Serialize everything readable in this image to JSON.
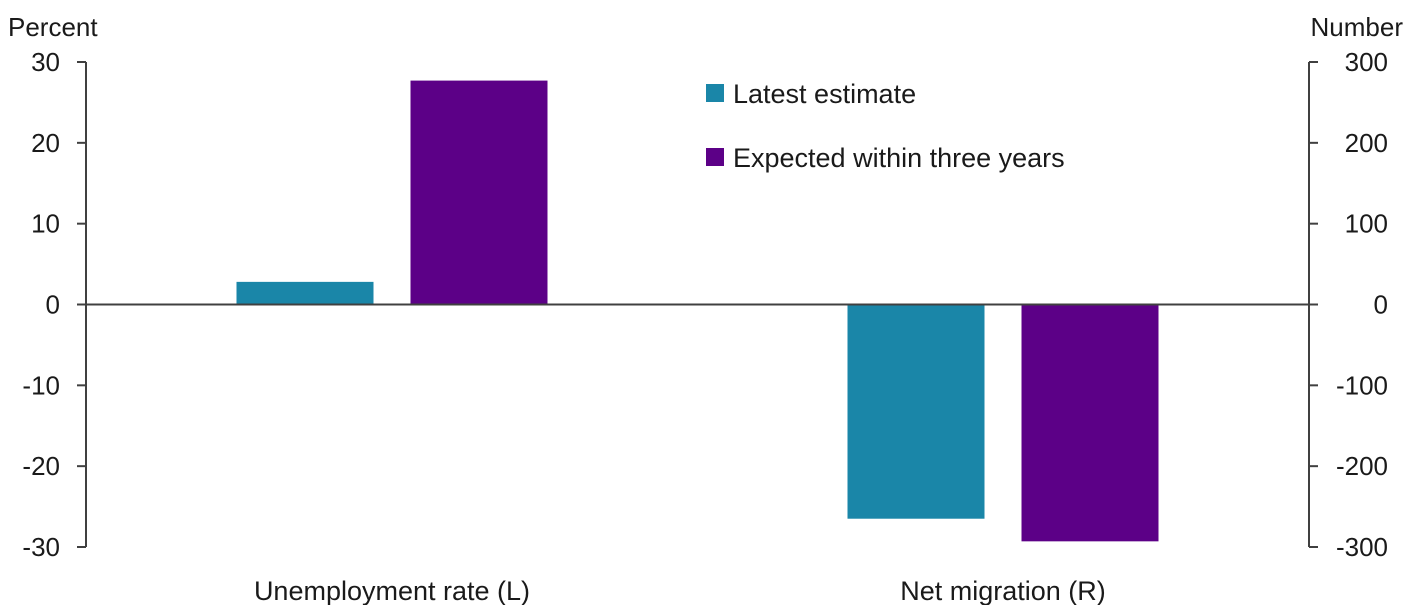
{
  "chart_data": {
    "type": "bar",
    "left_axis": {
      "unit": "Percent",
      "ylim": [
        -30,
        30
      ],
      "ticks": [
        30,
        20,
        10,
        0,
        -10,
        -20,
        -30
      ]
    },
    "right_axis": {
      "unit": "Number",
      "ylim": [
        -300,
        300
      ],
      "ticks": [
        300,
        200,
        100,
        0,
        -100,
        -200,
        -300
      ]
    },
    "categories": [
      "Unemployment rate (L)",
      "Net migration (R)"
    ],
    "category_axes": [
      "left",
      "right"
    ],
    "series": [
      {
        "name": "Latest estimate",
        "color": "#1a86a8",
        "values": [
          2.8,
          -265
        ]
      },
      {
        "name": "Expected within three years",
        "color": "#5c0087",
        "values": [
          27.7,
          -293
        ]
      }
    ],
    "legend_position": "top-center",
    "grid": false
  }
}
